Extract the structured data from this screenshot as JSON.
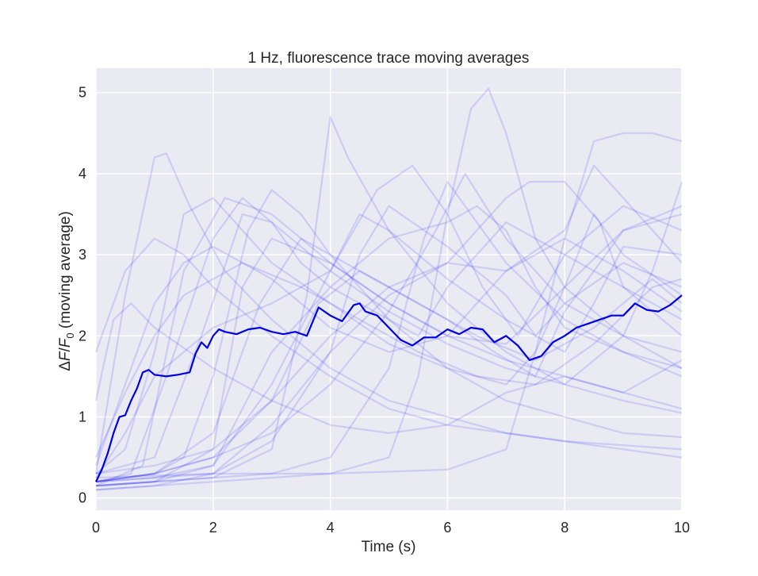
{
  "chart_data": {
    "type": "line",
    "title": "1 Hz, fluorescence trace moving averages",
    "xlabel": "Time (s)",
    "ylabel_parts": [
      "Δ",
      "F",
      "/",
      "F",
      "0",
      " (moving average)"
    ],
    "xlim": [
      0,
      10
    ],
    "ylim": [
      -0.15,
      5.3
    ],
    "xticks": [
      0,
      2,
      4,
      6,
      8,
      10
    ],
    "yticks": [
      0,
      1,
      2,
      3,
      4,
      5
    ],
    "grid": true,
    "legend": "none",
    "colors": {
      "background": "#eaeaf2",
      "grid": "#ffffff",
      "trace": "#0000ff",
      "mean": "#0000e6"
    },
    "mean_series": {
      "x": [
        0,
        0.1,
        0.2,
        0.3,
        0.4,
        0.5,
        0.6,
        0.7,
        0.8,
        0.9,
        1.0,
        1.2,
        1.4,
        1.6,
        1.7,
        1.8,
        1.9,
        2.0,
        2.1,
        2.2,
        2.4,
        2.6,
        2.8,
        3.0,
        3.2,
        3.4,
        3.6,
        3.8,
        4.0,
        4.2,
        4.4,
        4.5,
        4.6,
        4.8,
        5.0,
        5.2,
        5.4,
        5.6,
        5.8,
        6.0,
        6.2,
        6.4,
        6.6,
        6.8,
        7.0,
        7.2,
        7.4,
        7.6,
        7.8,
        8.0,
        8.2,
        8.4,
        8.6,
        8.8,
        9.0,
        9.2,
        9.4,
        9.6,
        9.8,
        10.0
      ],
      "y": [
        0.2,
        0.35,
        0.55,
        0.8,
        1.0,
        1.02,
        1.2,
        1.35,
        1.55,
        1.58,
        1.52,
        1.5,
        1.52,
        1.55,
        1.78,
        1.92,
        1.85,
        2.0,
        2.08,
        2.05,
        2.02,
        2.08,
        2.1,
        2.05,
        2.02,
        2.05,
        2.0,
        2.35,
        2.25,
        2.18,
        2.38,
        2.4,
        2.3,
        2.25,
        2.1,
        1.95,
        1.88,
        1.98,
        1.98,
        2.08,
        2.02,
        2.1,
        2.08,
        1.92,
        2.0,
        1.88,
        1.7,
        1.75,
        1.92,
        2.0,
        2.1,
        2.15,
        2.2,
        2.25,
        2.25,
        2.4,
        2.32,
        2.3,
        2.38,
        2.5
      ]
    },
    "traces": [
      {
        "x": [
          0,
          0.5,
          1.0,
          1.2,
          1.6,
          2.2,
          3.0,
          4.0,
          5.0,
          6.0,
          7.0,
          8.0,
          9.0,
          10.0
        ],
        "y": [
          0.3,
          2.5,
          4.2,
          4.25,
          3.6,
          2.8,
          2.2,
          1.6,
          1.2,
          1.0,
          0.8,
          0.7,
          0.6,
          0.5
        ]
      },
      {
        "x": [
          0,
          0.5,
          1.0,
          1.5,
          2.0,
          2.6,
          3.0,
          3.5,
          4.0,
          5.0,
          6.0,
          7.0,
          8.0,
          9.0,
          10.0
        ],
        "y": [
          0.2,
          0.25,
          0.3,
          0.5,
          1.5,
          3.3,
          3.8,
          3.5,
          3.0,
          2.2,
          1.6,
          1.2,
          1.0,
          0.8,
          0.75
        ]
      },
      {
        "x": [
          0,
          1.0,
          2.0,
          3.0,
          3.6,
          4.0,
          4.3,
          5.0,
          6.0,
          7.0,
          8.0,
          9.0,
          10.0
        ],
        "y": [
          0.15,
          0.2,
          0.25,
          0.6,
          2.5,
          4.7,
          4.2,
          3.3,
          2.4,
          1.8,
          1.4,
          1.2,
          1.05
        ]
      },
      {
        "x": [
          0,
          1.0,
          2.0,
          3.0,
          4.0,
          5.0,
          5.5,
          6.0,
          6.4,
          6.7,
          7.0,
          7.5,
          8.0,
          9.0,
          10.0
        ],
        "y": [
          0.1,
          0.15,
          0.2,
          0.25,
          0.3,
          0.5,
          1.5,
          3.5,
          4.8,
          5.05,
          4.5,
          3.2,
          2.6,
          2.0,
          1.6
        ]
      },
      {
        "x": [
          0,
          2.0,
          4.0,
          6.0,
          7.0,
          7.5,
          8.0,
          8.5,
          9.0,
          9.5,
          10.0
        ],
        "y": [
          0.25,
          0.3,
          0.3,
          0.35,
          0.6,
          1.8,
          3.2,
          4.4,
          4.5,
          4.5,
          4.4
        ]
      },
      {
        "x": [
          0,
          0.5,
          1.0,
          1.5,
          2.0,
          3.0,
          4.0,
          5.0,
          6.0,
          7.0,
          8.0,
          9.0,
          10.0
        ],
        "y": [
          1.8,
          2.8,
          3.2,
          3.0,
          2.6,
          2.0,
          1.5,
          1.1,
          0.9,
          0.8,
          0.7,
          0.65,
          0.6
        ]
      },
      {
        "x": [
          0,
          0.6,
          1.2,
          2.0,
          2.5,
          3.0,
          3.5,
          4.0,
          5.0,
          5.5,
          6.0,
          7.0,
          8.0,
          9.0,
          10.0
        ],
        "y": [
          0.2,
          0.3,
          1.5,
          3.2,
          3.7,
          3.4,
          2.9,
          2.6,
          2.2,
          2.0,
          2.6,
          3.4,
          3.0,
          2.6,
          2.2
        ]
      },
      {
        "x": [
          0,
          1.0,
          2.0,
          3.0,
          4.0,
          4.8,
          5.4,
          6.0,
          6.6,
          7.2,
          8.0,
          9.0,
          10.0
        ],
        "y": [
          0.15,
          0.2,
          0.4,
          1.4,
          2.8,
          3.8,
          4.1,
          3.5,
          2.6,
          2.0,
          3.0,
          3.6,
          3.3
        ]
      },
      {
        "x": [
          0,
          0.5,
          1.0,
          1.5,
          2.0,
          2.5,
          3.0,
          4.0,
          5.0,
          6.0,
          7.0,
          7.5,
          8.0,
          8.5,
          9.0,
          10.0
        ],
        "y": [
          0.3,
          0.6,
          1.8,
          3.5,
          3.7,
          3.3,
          2.9,
          2.4,
          1.9,
          1.6,
          1.4,
          1.8,
          2.6,
          3.5,
          3.0,
          2.5
        ]
      },
      {
        "x": [
          0,
          1.0,
          2.0,
          3.0,
          4.0,
          5.0,
          6.0,
          6.5,
          7.0,
          7.5,
          8.0,
          9.0,
          10.0
        ],
        "y": [
          0.2,
          0.25,
          0.4,
          1.8,
          2.6,
          3.2,
          3.4,
          3.6,
          3.3,
          2.6,
          2.1,
          1.8,
          1.6
        ]
      },
      {
        "x": [
          0,
          0.6,
          1.0,
          1.5,
          2.0,
          3.0,
          3.5,
          4.0,
          5.0,
          6.0,
          7.0,
          8.0,
          9.0,
          10.0
        ],
        "y": [
          0.4,
          1.6,
          2.4,
          2.9,
          3.1,
          2.7,
          2.4,
          2.1,
          1.8,
          2.0,
          2.8,
          3.2,
          2.8,
          2.3
        ]
      },
      {
        "x": [
          0,
          1.0,
          2.0,
          3.0,
          4.0,
          5.0,
          5.6,
          6.0,
          6.5,
          7.0,
          8.0,
          9.0,
          10.0
        ],
        "y": [
          0.15,
          0.2,
          0.25,
          0.3,
          0.5,
          1.6,
          3.2,
          3.9,
          3.4,
          2.9,
          2.2,
          1.8,
          1.5
        ]
      },
      {
        "x": [
          0,
          1.0,
          2.0,
          2.8,
          3.5,
          4.0,
          5.0,
          6.0,
          6.8,
          7.5,
          8.0,
          9.0,
          10.0
        ],
        "y": [
          0.2,
          0.3,
          0.8,
          2.4,
          3.2,
          3.0,
          2.6,
          2.2,
          1.8,
          1.5,
          2.3,
          3.3,
          3.6
        ]
      },
      {
        "x": [
          0,
          0.5,
          1.0,
          2.0,
          3.0,
          4.0,
          4.5,
          5.0,
          6.0,
          7.0,
          8.0,
          8.5,
          9.0,
          10.0
        ],
        "y": [
          0.25,
          0.8,
          1.5,
          2.1,
          2.4,
          2.8,
          3.5,
          3.3,
          2.7,
          2.2,
          1.8,
          2.4,
          3.1,
          3.0
        ]
      },
      {
        "x": [
          0,
          1.0,
          1.8,
          2.5,
          3.0,
          4.0,
          5.0,
          6.0,
          7.0,
          8.0,
          9.0,
          9.5,
          10.0
        ],
        "y": [
          0.3,
          0.5,
          2.0,
          3.5,
          3.4,
          2.8,
          2.3,
          1.9,
          1.6,
          1.4,
          2.0,
          2.8,
          3.9
        ]
      },
      {
        "x": [
          0,
          1.0,
          2.0,
          3.0,
          4.0,
          4.5,
          5.0,
          6.0,
          7.0,
          7.5,
          8.0,
          9.0,
          10.0
        ],
        "y": [
          0.2,
          0.25,
          0.3,
          0.7,
          1.8,
          3.0,
          3.6,
          3.1,
          2.5,
          2.0,
          2.4,
          2.9,
          2.6
        ]
      },
      {
        "x": [
          0,
          0.3,
          0.6,
          1.0,
          2.0,
          3.0,
          4.0,
          5.0,
          6.0,
          7.0,
          8.0,
          9.0,
          10.0
        ],
        "y": [
          1.2,
          2.2,
          2.4,
          2.1,
          1.6,
          1.2,
          0.9,
          0.8,
          0.9,
          1.3,
          1.5,
          1.3,
          1.1
        ]
      },
      {
        "x": [
          0,
          1.0,
          2.0,
          3.0,
          4.0,
          5.0,
          6.0,
          7.0,
          7.4,
          8.0,
          8.6,
          9.0,
          10.0
        ],
        "y": [
          0.1,
          0.15,
          0.3,
          0.9,
          1.8,
          2.5,
          2.9,
          3.7,
          3.9,
          3.9,
          3.4,
          2.6,
          2.0
        ]
      },
      {
        "x": [
          0,
          1.0,
          2.0,
          2.5,
          3.0,
          4.0,
          5.0,
          6.0,
          7.0,
          8.0,
          9.0,
          10.0
        ],
        "y": [
          0.15,
          0.2,
          0.6,
          2.6,
          3.2,
          2.9,
          2.4,
          2.0,
          1.9,
          2.6,
          3.3,
          3.5
        ]
      },
      {
        "x": [
          0,
          1.0,
          2.0,
          3.0,
          4.0,
          5.0,
          5.8,
          6.3,
          7.0,
          8.0,
          9.0,
          10.0
        ],
        "y": [
          0.2,
          0.3,
          0.5,
          0.8,
          1.4,
          2.3,
          3.3,
          4.0,
          3.2,
          2.4,
          2.0,
          1.8
        ]
      },
      {
        "x": [
          0,
          0.5,
          1.0,
          1.5,
          2.5,
          3.5,
          4.5,
          5.5,
          6.5,
          7.5,
          8.5,
          9.5,
          10.0
        ],
        "y": [
          0.5,
          1.3,
          2.0,
          2.5,
          2.9,
          2.6,
          2.2,
          1.8,
          1.5,
          1.4,
          1.9,
          2.6,
          2.7
        ]
      },
      {
        "x": [
          0,
          1.0,
          2.0,
          3.0,
          4.0,
          5.0,
          6.0,
          7.0,
          8.0,
          8.5,
          9.0,
          10.0
        ],
        "y": [
          0.3,
          0.4,
          0.6,
          1.2,
          2.0,
          2.6,
          2.9,
          2.8,
          3.3,
          4.1,
          3.7,
          2.9
        ]
      },
      {
        "x": [
          0,
          0.8,
          1.5,
          2.2,
          3.0,
          4.0,
          5.0,
          6.0,
          7.0,
          8.0,
          9.0,
          10.0
        ],
        "y": [
          0.15,
          0.4,
          2.8,
          3.7,
          3.5,
          2.9,
          2.4,
          2.0,
          1.7,
          1.5,
          1.3,
          1.7
        ]
      },
      {
        "x": [
          0,
          1.0,
          2.0,
          3.0,
          3.8,
          4.5,
          5.5,
          6.5,
          7.5,
          8.5,
          9.5,
          10.0
        ],
        "y": [
          0.2,
          0.3,
          0.5,
          1.2,
          2.4,
          2.8,
          2.4,
          2.0,
          1.7,
          2.1,
          2.7,
          2.4
        ]
      }
    ]
  }
}
